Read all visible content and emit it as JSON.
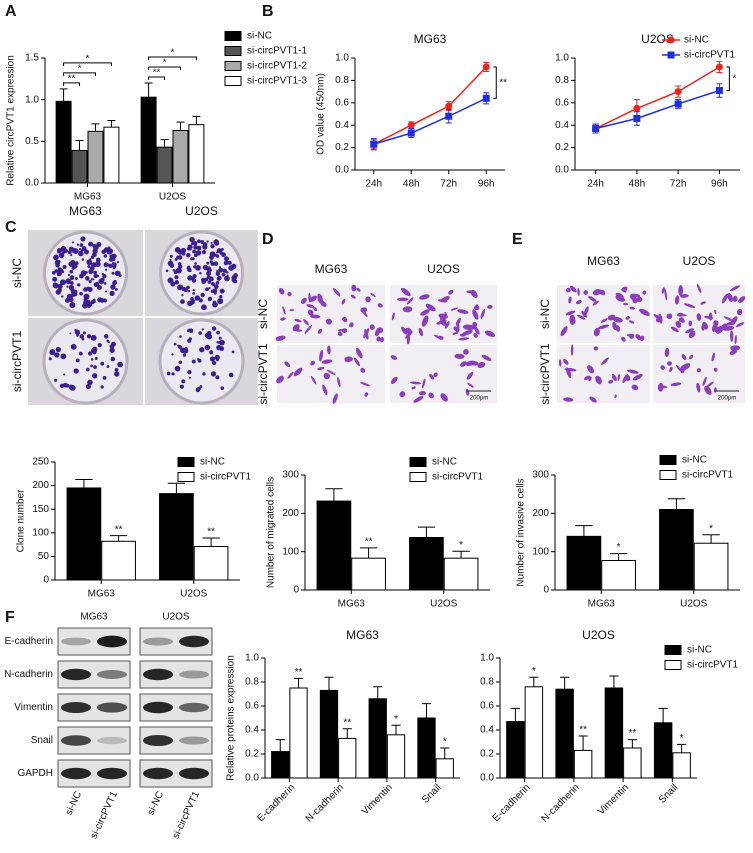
{
  "panels": [
    "A",
    "B",
    "C",
    "D",
    "E",
    "F"
  ],
  "images": {
    "colonies": {
      "columns": [
        "MG63",
        "U2OS"
      ],
      "rows": [
        "si-NC",
        "si-circPVT1"
      ]
    },
    "migration": {
      "columns": [
        "MG63",
        "U2OS"
      ],
      "rows": [
        "si-NC",
        "si-circPVT1"
      ],
      "scale_bar": "200μm"
    },
    "invasion": {
      "columns": [
        "MG63",
        "U2OS"
      ],
      "rows": [
        "si-NC",
        "si-circPVT1"
      ],
      "scale_bar": "200μm"
    },
    "blot": {
      "columns": [
        "MG63",
        "U2OS"
      ],
      "rows": [
        "E-cadherin",
        "N-cadherin",
        "Vimentin",
        "Snail",
        "GAPDH"
      ],
      "lanes": [
        "si-NC",
        "si-circPVT1",
        "si-NC",
        "si-circPVT1"
      ]
    }
  },
  "chart_data": [
    {
      "type": "bar",
      "ylabel": "Relative circPVT1 expression",
      "categories": [
        "MG63",
        "U2OS"
      ],
      "ylim": [
        0,
        1.5
      ],
      "yticks": [
        {
          "value": 0,
          "label": "0.0"
        },
        0.5,
        {
          "value": 1,
          "label": "1.0"
        },
        1.5
      ],
      "series": [
        {
          "name": "si-NC",
          "color": "#000000",
          "values": [
            0.98,
            1.03
          ],
          "errors": [
            0.15,
            0.17
          ]
        },
        {
          "name": "si-circPVT1-1",
          "color": "#555555",
          "values": [
            0.39,
            0.43
          ],
          "errors": [
            0.12,
            0.09
          ],
          "significance": [
            "**",
            "**"
          ]
        },
        {
          "name": "si-circPVT1-2",
          "color": "#aaaaaa",
          "values": [
            0.62,
            0.63
          ],
          "errors": [
            0.09,
            0.1
          ],
          "significance": [
            "*",
            "*"
          ]
        },
        {
          "name": "si-circPVT1-3",
          "color": "#ffffff",
          "values": [
            0.67,
            0.7
          ],
          "errors": [
            0.08,
            0.1
          ],
          "significance": [
            "*",
            "*"
          ]
        }
      ]
    },
    {
      "type": "line",
      "title": "MG63",
      "ylabel": "OD value (450nm)",
      "categories": [
        "24h",
        "48h",
        "72h",
        "96h"
      ],
      "ylim": [
        0,
        1
      ],
      "yticks": [
        {
          "value": 0,
          "label": "0.0"
        },
        0.2,
        0.4,
        0.6,
        0.8,
        {
          "value": 1,
          "label": "1.0"
        }
      ],
      "series": [
        {
          "color": "#e8251f",
          "marker": "circle",
          "values": [
            0.23,
            0.4,
            0.57,
            0.92
          ],
          "errors": [
            0.04,
            0.03,
            0.04,
            0.04
          ]
        },
        {
          "color": "#1f2fd6",
          "marker": "square",
          "values": [
            0.23,
            0.33,
            0.48,
            0.64
          ],
          "errors": [
            0.05,
            0.04,
            0.06,
            0.05
          ],
          "significance": [
            null,
            null,
            null,
            "**"
          ]
        }
      ]
    },
    {
      "type": "line",
      "title": "U2OS",
      "categories": [
        "24h",
        "48h",
        "72h",
        "96h"
      ],
      "ylim": [
        0,
        1
      ],
      "yticks": [
        {
          "value": 0,
          "label": "0.0"
        },
        0.2,
        0.4,
        0.6,
        0.8,
        {
          "value": 1,
          "label": "1.0"
        }
      ],
      "series": [
        {
          "name": "si-NC",
          "color": "#e8251f",
          "marker": "circle",
          "values": [
            0.37,
            0.55,
            0.7,
            0.92
          ],
          "errors": [
            0.04,
            0.08,
            0.05,
            0.05
          ]
        },
        {
          "name": "si-circPVT1",
          "color": "#1f2fd6",
          "marker": "square",
          "values": [
            0.37,
            0.46,
            0.59,
            0.71
          ],
          "errors": [
            0.04,
            0.06,
            0.04,
            0.06
          ],
          "significance": [
            null,
            null,
            null,
            "*"
          ]
        }
      ]
    },
    {
      "type": "bar",
      "ylabel": "Clone number",
      "categories": [
        "MG63",
        "U2OS"
      ],
      "ylim": [
        0,
        250
      ],
      "yticks": [
        0,
        50,
        100,
        150,
        200,
        250
      ],
      "series": [
        {
          "name": "si-NC",
          "color": "#000000",
          "values": [
            195,
            183
          ],
          "errors": [
            18,
            22
          ]
        },
        {
          "name": "si-circPVT1",
          "color": "#ffffff",
          "values": [
            82,
            71
          ],
          "errors": [
            12,
            18
          ],
          "significance": [
            "**",
            "**"
          ]
        }
      ]
    },
    {
      "type": "bar",
      "ylabel": "Number of migrated cells",
      "categories": [
        "MG63",
        "U2OS"
      ],
      "ylim": [
        0,
        300
      ],
      "yticks": [
        0,
        100,
        200,
        300
      ],
      "series": [
        {
          "name": "si-NC",
          "color": "#000000",
          "values": [
            232,
            137
          ],
          "errors": [
            32,
            27
          ]
        },
        {
          "name": "si-circPVT1",
          "color": "#ffffff",
          "values": [
            83,
            83
          ],
          "errors": [
            27,
            18
          ],
          "significance": [
            "**",
            "*"
          ]
        }
      ]
    },
    {
      "type": "bar",
      "ylabel": "Number of  invasive cells",
      "categories": [
        "MG63",
        "U2OS"
      ],
      "ylim": [
        0,
        300
      ],
      "yticks": [
        0,
        100,
        200,
        300
      ],
      "series": [
        {
          "name": "si-NC",
          "color": "#000000",
          "values": [
            140,
            210
          ],
          "errors": [
            28,
            28
          ]
        },
        {
          "name": "si-circPVT1",
          "color": "#ffffff",
          "values": [
            77,
            122
          ],
          "errors": [
            18,
            22
          ],
          "significance": [
            "*",
            "*"
          ]
        }
      ]
    },
    {
      "type": "bar",
      "title": "MG63",
      "ylabel": "Relative proteins expression",
      "xtick_rotation": 45,
      "categories": [
        "E-cadherin",
        "N-cadherin",
        "Vimentin",
        "Snail"
      ],
      "ylim": [
        0,
        1
      ],
      "yticks": [
        {
          "value": 0,
          "label": "0.0"
        },
        0.2,
        0.4,
        0.6,
        0.8,
        {
          "value": 1,
          "label": "1.0"
        }
      ],
      "series": [
        {
          "color": "#000000",
          "values": [
            0.22,
            0.73,
            0.66,
            0.5
          ],
          "errors": [
            0.1,
            0.11,
            0.1,
            0.12
          ]
        },
        {
          "color": "#ffffff",
          "values": [
            0.75,
            0.33,
            0.36,
            0.16
          ],
          "errors": [
            0.08,
            0.08,
            0.08,
            0.09
          ],
          "significance": [
            "**",
            "**",
            "*",
            "*"
          ]
        }
      ]
    },
    {
      "type": "bar",
      "title": "U2OS",
      "xtick_rotation": 45,
      "categories": [
        "E-cadherin",
        "N-cadherin",
        "Vimentin",
        "Snail"
      ],
      "ylim": [
        0,
        1
      ],
      "yticks": [
        {
          "value": 0,
          "label": "0.0"
        },
        0.2,
        0.4,
        0.6,
        0.8,
        {
          "value": 1,
          "label": "1.0"
        }
      ],
      "series": [
        {
          "name": "si-NC",
          "color": "#000000",
          "values": [
            0.47,
            0.74,
            0.75,
            0.46
          ],
          "errors": [
            0.11,
            0.1,
            0.1,
            0.12
          ]
        },
        {
          "name": "si-circPVT1",
          "color": "#ffffff",
          "values": [
            0.76,
            0.23,
            0.25,
            0.21
          ],
          "errors": [
            0.08,
            0.12,
            0.07,
            0.07
          ],
          "significance": [
            "*",
            "**",
            "**",
            "*"
          ]
        }
      ]
    }
  ]
}
